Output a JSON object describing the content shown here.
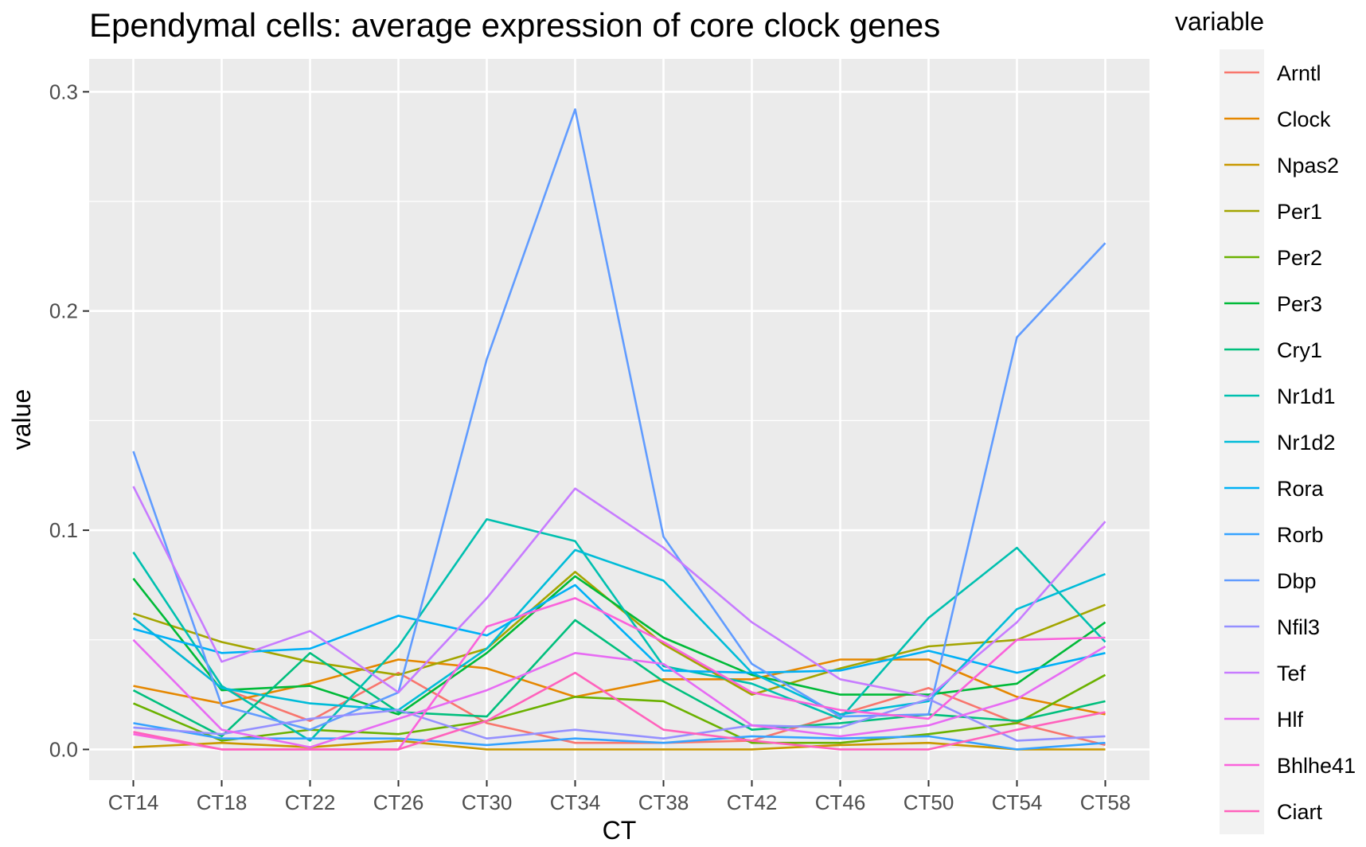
{
  "chart_data": {
    "type": "line",
    "title": "Ependymal cells: average expression of core clock genes",
    "xlabel": "CT",
    "ylabel": "value",
    "legend_title": "variable",
    "legend_position": "right",
    "grid": true,
    "ylim": [
      -0.014,
      0.315
    ],
    "yticks": [
      0.0,
      0.1,
      0.2,
      0.3
    ],
    "ytick_labels": [
      "0.0",
      "0.1",
      "0.2",
      "0.3"
    ],
    "categories": [
      "CT14",
      "CT18",
      "CT22",
      "CT26",
      "CT30",
      "CT34",
      "CT38",
      "CT42",
      "CT46",
      "CT50",
      "CT54",
      "CT58"
    ],
    "series": [
      {
        "name": "Arntl",
        "color": "#F8766D",
        "values": [
          0.06,
          0.028,
          0.013,
          0.035,
          0.012,
          0.003,
          0.003,
          0.004,
          0.016,
          0.028,
          0.012,
          0.002
        ]
      },
      {
        "name": "Clock",
        "color": "#E58700",
        "values": [
          0.029,
          0.021,
          0.03,
          0.041,
          0.037,
          0.024,
          0.032,
          0.032,
          0.041,
          0.041,
          0.024,
          0.016
        ]
      },
      {
        "name": "Npas2",
        "color": "#C99800",
        "values": [
          0.001,
          0.003,
          0.001,
          0.004,
          0.0,
          0.0,
          0.0,
          0.0,
          0.002,
          0.003,
          0.0,
          0.0
        ]
      },
      {
        "name": "Per1",
        "color": "#A3A500",
        "values": [
          0.062,
          0.049,
          0.04,
          0.034,
          0.046,
          0.081,
          0.048,
          0.025,
          0.037,
          0.047,
          0.05,
          0.066
        ]
      },
      {
        "name": "Per2",
        "color": "#6BB100",
        "values": [
          0.021,
          0.004,
          0.009,
          0.007,
          0.013,
          0.024,
          0.022,
          0.003,
          0.003,
          0.007,
          0.012,
          0.034
        ]
      },
      {
        "name": "Per3",
        "color": "#00BA38",
        "values": [
          0.078,
          0.027,
          0.029,
          0.016,
          0.044,
          0.079,
          0.051,
          0.034,
          0.025,
          0.025,
          0.03,
          0.058
        ]
      },
      {
        "name": "Cry1",
        "color": "#00BF7D",
        "values": [
          0.027,
          0.006,
          0.044,
          0.017,
          0.015,
          0.059,
          0.031,
          0.009,
          0.012,
          0.016,
          0.013,
          0.022
        ]
      },
      {
        "name": "Nr1d1",
        "color": "#00C0AF",
        "values": [
          0.09,
          0.029,
          0.004,
          0.047,
          0.105,
          0.095,
          0.038,
          0.03,
          0.014,
          0.06,
          0.092,
          0.049
        ]
      },
      {
        "name": "Nr1d2",
        "color": "#00BCD8",
        "values": [
          0.06,
          0.028,
          0.021,
          0.018,
          0.046,
          0.091,
          0.077,
          0.035,
          0.016,
          0.022,
          0.064,
          0.08
        ]
      },
      {
        "name": "Rora",
        "color": "#00B0F6",
        "values": [
          0.055,
          0.044,
          0.046,
          0.061,
          0.052,
          0.075,
          0.036,
          0.035,
          0.036,
          0.045,
          0.035,
          0.044
        ]
      },
      {
        "name": "Rorb",
        "color": "#35A2FF",
        "values": [
          0.012,
          0.005,
          0.005,
          0.005,
          0.002,
          0.005,
          0.003,
          0.006,
          0.005,
          0.006,
          0.0,
          0.003
        ]
      },
      {
        "name": "Dbp",
        "color": "#619CFF",
        "values": [
          0.136,
          0.02,
          0.009,
          0.026,
          0.178,
          0.292,
          0.097,
          0.039,
          0.015,
          0.016,
          0.188,
          0.231
        ]
      },
      {
        "name": "Nfil3",
        "color": "#9590FF",
        "values": [
          0.01,
          0.007,
          0.014,
          0.018,
          0.005,
          0.009,
          0.005,
          0.011,
          0.01,
          0.023,
          0.004,
          0.006
        ]
      },
      {
        "name": "Tef",
        "color": "#C77CFF",
        "values": [
          0.12,
          0.04,
          0.054,
          0.026,
          0.069,
          0.119,
          0.092,
          0.058,
          0.032,
          0.024,
          0.058,
          0.104
        ]
      },
      {
        "name": "Hlf",
        "color": "#E76BF3",
        "values": [
          0.05,
          0.009,
          0.001,
          0.014,
          0.027,
          0.044,
          0.039,
          0.011,
          0.006,
          0.011,
          0.023,
          0.047
        ]
      },
      {
        "name": "Bhlhe41",
        "color": "#FA62DB",
        "values": [
          0.007,
          0.0,
          0.0,
          0.0,
          0.056,
          0.069,
          0.049,
          0.026,
          0.018,
          0.014,
          0.05,
          0.051
        ]
      },
      {
        "name": "Ciart",
        "color": "#FF62BC",
        "values": [
          0.008,
          0.0,
          0.0,
          0.0,
          0.013,
          0.035,
          0.009,
          0.004,
          0.0,
          0.0,
          0.009,
          0.017
        ]
      }
    ]
  }
}
